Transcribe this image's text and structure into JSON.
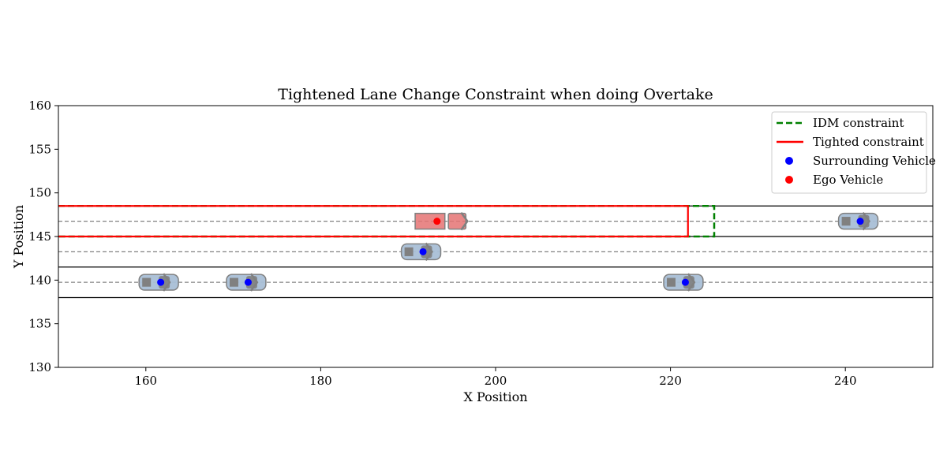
{
  "chart_data": {
    "type": "scatter",
    "title": "Tightened Lane Change Constraint when doing Overtake",
    "xlabel": "X Position",
    "ylabel": "Y Position",
    "xlim": [
      150,
      250
    ],
    "ylim": [
      130,
      160
    ],
    "xticks": [
      "160",
      "180",
      "200",
      "220",
      "240"
    ],
    "yticks": [
      "130",
      "135",
      "140",
      "145",
      "150",
      "155",
      "160"
    ],
    "lane_boundaries_y": [
      148.5,
      145.0,
      141.5,
      138.0
    ],
    "lane_centerlines_y": [
      146.75,
      143.25,
      139.75
    ],
    "legend": {
      "placement": "top-right",
      "entries": [
        "IDM constraint",
        "Tighted constraint",
        "Surrounding Vehicle",
        "Ego Vehicle"
      ]
    },
    "idm_constraint": {
      "x_end": 225,
      "y_range": [
        145.0,
        148.5
      ],
      "color": "#008000",
      "style": "dashed"
    },
    "tightened_constraint": {
      "x_start": 150,
      "x_end": 222,
      "y_range": [
        145.0,
        148.5
      ],
      "color": "#ff0000",
      "style": "solid"
    },
    "ego_vehicle": {
      "x": 193.3,
      "y": 146.75,
      "color": "#ff0000"
    },
    "surrounding_vehicles": {
      "color": "#0000ff",
      "points": [
        {
          "x": 161.7,
          "y": 139.75
        },
        {
          "x": 171.7,
          "y": 139.75
        },
        {
          "x": 191.7,
          "y": 143.25
        },
        {
          "x": 221.7,
          "y": 139.75
        },
        {
          "x": 241.7,
          "y": 146.75
        }
      ]
    }
  }
}
